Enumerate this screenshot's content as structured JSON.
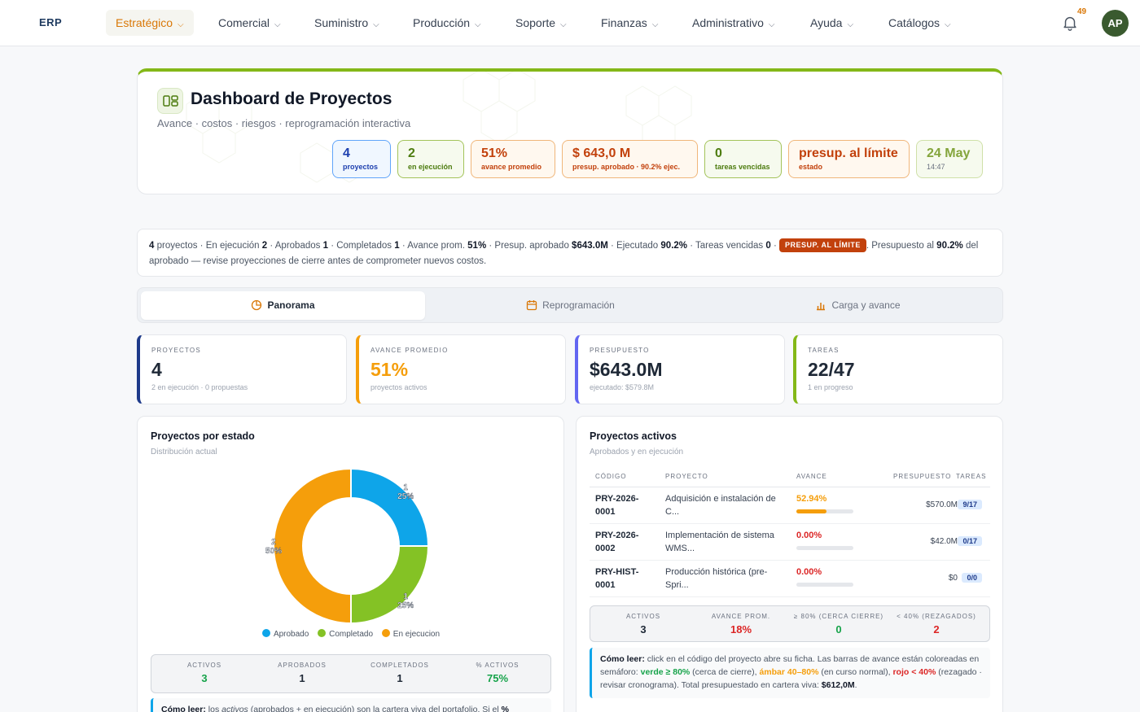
{
  "nav": {
    "brand": "ERP",
    "items": [
      {
        "label": "Estratégico"
      },
      {
        "label": "Comercial"
      },
      {
        "label": "Suministro"
      },
      {
        "label": "Producción"
      },
      {
        "label": "Soporte"
      },
      {
        "label": "Finanzas"
      },
      {
        "label": "Administrativo"
      },
      {
        "label": "Ayuda"
      },
      {
        "label": "Catálogos"
      }
    ],
    "notifications": "49",
    "avatar": "AP"
  },
  "hero": {
    "title": "Dashboard de Proyectos",
    "subtitle": "Avance · costos · riesgos · reprogramación interactiva",
    "pills": [
      {
        "value": "4",
        "label": "proyectos",
        "color": "#1e40af"
      },
      {
        "value": "2",
        "label": "en ejecución",
        "color": "#4d7c0f"
      },
      {
        "value": "51%",
        "label": "avance promedio",
        "color": "#c2410c"
      },
      {
        "value": "$ 643,0 M",
        "label": "presup. aprobado · 90.2% ejec.",
        "color": "#c2410c"
      },
      {
        "value": "0",
        "label": "tareas vencidas",
        "color": "#4d7c0f"
      },
      {
        "value": "presup. al límite",
        "label": "estado",
        "color": "#c2410c"
      },
      {
        "value": "24 May",
        "label": "14:47",
        "color": "#84a53c"
      }
    ]
  },
  "summary": {
    "proyectos": "4",
    "t_proyectos": "proyectos ·",
    "t_ejec": "En ejecución",
    "ejec": "2",
    "t_aprob": "· Aprobados",
    "aprob": "1",
    "t_compl": "· Completados",
    "compl": "1",
    "t_avance": "· Avance prom.",
    "avance": "51%",
    "t_presup": "· Presup. aprobado",
    "presup": "$643.0M",
    "t_ejecutado": "· Ejecutado",
    "ejecutado": "90.2%",
    "t_vencidas": "· Tareas vencidas",
    "vencidas": "0",
    "t_dot": "·",
    "badge": "PRESUP. AL LÍMITE",
    "t_msg1": ". Presupuesto al",
    "pct": "90.2%",
    "t_msg2": "del aprobado — revise proyecciones de cierre antes de comprometer nuevos costos."
  },
  "tabs": [
    {
      "label": "Panorama"
    },
    {
      "label": "Reprogramación"
    },
    {
      "label": "Carga y avance"
    }
  ],
  "kpis": [
    {
      "label": "PROYECTOS",
      "value": "4",
      "sub": "2 en ejecución · 0 propuestas",
      "color": "#1e3a8a",
      "value_color": "#1f2937"
    },
    {
      "label": "AVANCE PROMEDIO",
      "value": "51%",
      "sub": "proyectos activos",
      "color": "#f59e0b",
      "value_color": "#f59e0b"
    },
    {
      "label": "PRESUPUESTO",
      "value": "$643.0M",
      "sub": "ejecutado: $579.8M",
      "color": "#6366f1",
      "value_color": "#1f2937"
    },
    {
      "label": "TAREAS",
      "value": "22/47",
      "sub": "1 en progreso",
      "color": "#84b818",
      "value_color": "#1f2937"
    }
  ],
  "status_panel": {
    "title": "Proyectos por estado",
    "subtitle": "Distribución actual",
    "stats": [
      {
        "label": "ACTIVOS",
        "value": "3",
        "color": "#16a34a"
      },
      {
        "label": "APROBADOS",
        "value": "1",
        "color": "#1f2937"
      },
      {
        "label": "COMPLETADOS",
        "value": "1",
        "color": "#1f2937"
      },
      {
        "label": "% ACTIVOS",
        "value": "75%",
        "color": "#16a34a"
      }
    ],
    "howto_label": "Cómo leer:",
    "howto_text": "los",
    "howto_em": "activos",
    "howto_text2": "(aprobados + en ejecución) son la cartera viva del portafolio. Si el",
    "howto_pct": "%"
  },
  "chart_data": {
    "type": "pie",
    "title": "Proyectos por estado",
    "subtitle": "Distribución actual",
    "categories": [
      "Aprobado",
      "Completado",
      "En ejecucion"
    ],
    "values": [
      1,
      1,
      2
    ],
    "percent_labels": [
      "25%",
      "25%",
      "50%"
    ],
    "colors": [
      "#0ea5e9",
      "#84c225",
      "#f59e0b"
    ],
    "legend": "bottom",
    "donut": true
  },
  "active_panel": {
    "title": "Proyectos activos",
    "subtitle": "Aprobados y en ejecución",
    "columns": [
      "CÓDIGO",
      "PROYECTO",
      "AVANCE",
      "PRESUPUESTO",
      "TAREAS"
    ],
    "rows": [
      {
        "code": "PRY-2026-0001",
        "name": "Adquisición e instalación de C...",
        "pct": "52.94%",
        "progress": 0.5294,
        "pct_color": "#f59e0b",
        "budget": "$570.0M",
        "tasks": "9/17"
      },
      {
        "code": "PRY-2026-0002",
        "name": "Implementación de sistema WMS...",
        "pct": "0.00%",
        "progress": 0,
        "pct_color": "#dc2626",
        "budget": "$42.0M",
        "tasks": "0/17"
      },
      {
        "code": "PRY-HIST-0001",
        "name": "Producción histórica (pre-Spri...",
        "pct": "0.00%",
        "progress": 0,
        "pct_color": "#dc2626",
        "budget": "$0",
        "tasks": "0/0"
      }
    ],
    "stats": [
      {
        "label": "ACTIVOS",
        "value": "3",
        "color": "#1f2937"
      },
      {
        "label": "AVANCE PROM.",
        "value": "18%",
        "color": "#dc2626"
      },
      {
        "label": "≥ 80% (CERCA CIERRE)",
        "value": "0",
        "color": "#16a34a"
      },
      {
        "label": "< 40% (REZAGADOS)",
        "value": "2",
        "color": "#dc2626"
      }
    ],
    "howto": {
      "label": "Cómo leer:",
      "t1": "click en el código del proyecto abre su ficha. Las barras de avance están coloreadas en semáforo:",
      "green": "verde ≥ 80%",
      "t2": "(cerca de cierre),",
      "amber": "ámbar 40–80%",
      "t3": "(en curso normal),",
      "red": "rojo < 40%",
      "t4": "(rezagado · revisar cronograma). Total presupuestado en cartera viva:",
      "total": "$612,0M",
      "t5": "."
    }
  }
}
